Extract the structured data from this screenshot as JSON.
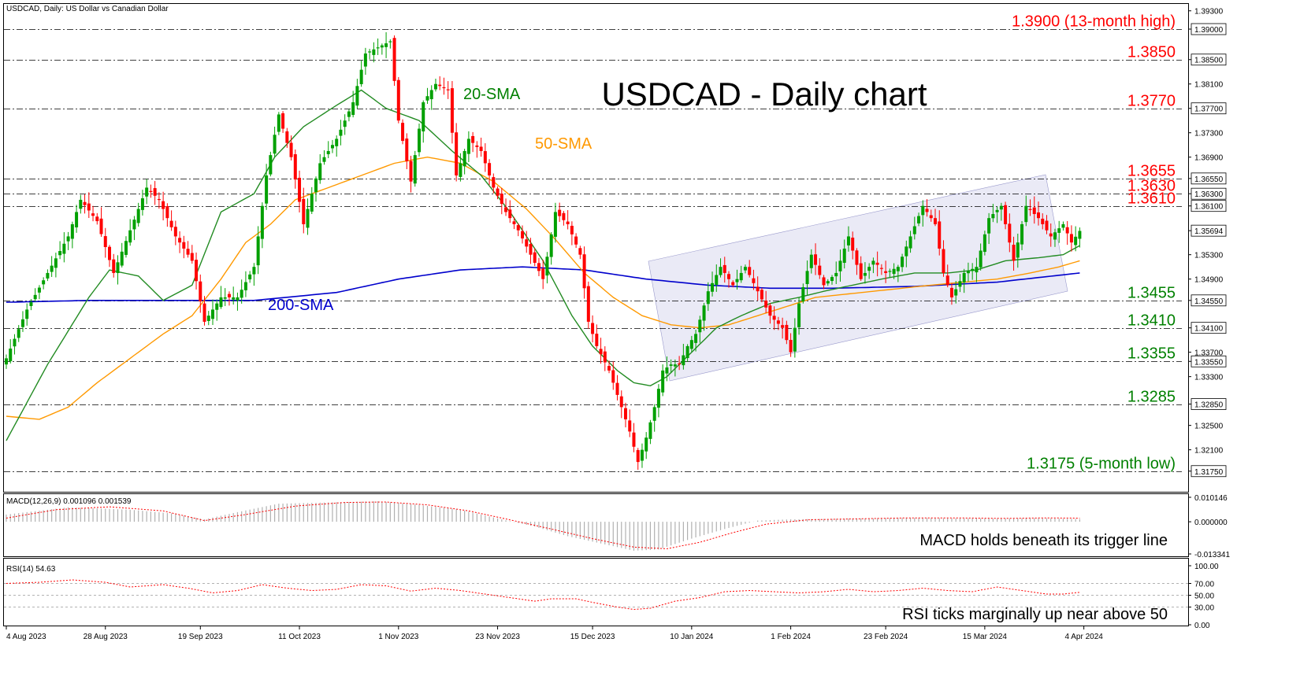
{
  "header": {
    "symbol_text": "USDCAD, Daily:  US Dollar vs Canadian Dollar",
    "title": "USDCAD - Daily chart"
  },
  "chart_data": [
    {
      "type": "candlestick",
      "title": "USDCAD - Daily chart",
      "symbol": "USDCAD, Daily:  US Dollar vs Canadian Dollar",
      "ylim": [
        1.3145,
        1.394
      ],
      "y_ticks": [
        "1.39300",
        "1.39000",
        "1.38500",
        "1.38100",
        "1.37700",
        "1.37300",
        "1.36900",
        "1.36550",
        "1.36300",
        "1.36100",
        "1.35694",
        "1.35300",
        "1.34900",
        "1.34550",
        "1.34100",
        "1.33700",
        "1.33550",
        "1.33300",
        "1.32850",
        "1.32500",
        "1.32100",
        "1.31750"
      ],
      "boxed_ticks": [
        "1.39000",
        "1.38500",
        "1.37700",
        "1.36550",
        "1.36300",
        "1.36100",
        "1.35694",
        "1.34550",
        "1.34100",
        "1.33550",
        "1.32850",
        "1.31750"
      ],
      "x_tick_labels": [
        "4 Aug 2023",
        "28 Aug 2023",
        "19 Sep 2023",
        "11 Oct 2023",
        "1 Nov 2023",
        "23 Nov 2023",
        "15 Dec 2023",
        "10 Jan 2024",
        "1 Feb 2024",
        "23 Feb 2024",
        "15 Mar 2024",
        "4 Apr 2024"
      ],
      "levels": [
        {
          "value": 1.39,
          "label": "1.3900 (13-month high)",
          "color": "#ff0000"
        },
        {
          "value": 1.385,
          "label": "1.3850",
          "color": "#ff0000"
        },
        {
          "value": 1.377,
          "label": "1.3770",
          "color": "#ff0000"
        },
        {
          "value": 1.3655,
          "label": "1.3655",
          "color": "#ff0000"
        },
        {
          "value": 1.363,
          "label": "1.3630",
          "color": "#ff0000"
        },
        {
          "value": 1.361,
          "label": "1.3610",
          "color": "#ff0000"
        },
        {
          "value": 1.3455,
          "label": "1.3455",
          "color": "#008000"
        },
        {
          "value": 1.341,
          "label": "1.3410",
          "color": "#008000"
        },
        {
          "value": 1.3355,
          "label": "1.3355",
          "color": "#008000"
        },
        {
          "value": 1.3285,
          "label": "1.3285",
          "color": "#008000"
        },
        {
          "value": 1.3175,
          "label": "1.3175 (5-month low)",
          "color": "#008000"
        }
      ],
      "close_anchors": [
        [
          0,
          1.336
        ],
        [
          5,
          1.344
        ],
        [
          10,
          1.35
        ],
        [
          15,
          1.356
        ],
        [
          18,
          1.362
        ],
        [
          22,
          1.3585
        ],
        [
          26,
          1.35
        ],
        [
          30,
          1.357
        ],
        [
          34,
          1.364
        ],
        [
          37,
          1.362
        ],
        [
          41,
          1.356
        ],
        [
          45,
          1.352
        ],
        [
          48,
          1.342
        ],
        [
          52,
          1.346
        ],
        [
          56,
          1.346
        ],
        [
          60,
          1.351
        ],
        [
          63,
          1.366
        ],
        [
          66,
          1.376
        ],
        [
          69,
          1.369
        ],
        [
          72,
          1.358
        ],
        [
          76,
          1.368
        ],
        [
          80,
          1.372
        ],
        [
          84,
          1.378
        ],
        [
          87,
          1.386
        ],
        [
          90,
          1.387
        ],
        [
          93,
          1.388
        ],
        [
          95,
          1.375
        ],
        [
          98,
          1.365
        ],
        [
          101,
          1.378
        ],
        [
          104,
          1.381
        ],
        [
          107,
          1.38
        ],
        [
          109,
          1.366
        ],
        [
          112,
          1.372
        ],
        [
          115,
          1.37
        ],
        [
          118,
          1.364
        ],
        [
          121,
          1.36
        ],
        [
          124,
          1.357
        ],
        [
          127,
          1.353
        ],
        [
          130,
          1.349
        ],
        [
          133,
          1.36
        ],
        [
          136,
          1.358
        ],
        [
          139,
          1.353
        ],
        [
          141,
          1.342
        ],
        [
          143,
          1.338
        ],
        [
          146,
          1.334
        ],
        [
          149,
          1.328
        ],
        [
          151,
          1.324
        ],
        [
          153,
          1.319
        ],
        [
          155,
          1.323
        ],
        [
          157,
          1.328
        ],
        [
          159,
          1.334
        ],
        [
          161,
          1.335
        ],
        [
          163,
          1.335
        ],
        [
          165,
          1.338
        ],
        [
          167,
          1.34
        ],
        [
          170,
          1.347
        ],
        [
          173,
          1.351
        ],
        [
          176,
          1.348
        ],
        [
          179,
          1.351
        ],
        [
          182,
          1.347
        ],
        [
          185,
          1.343
        ],
        [
          188,
          1.341
        ],
        [
          190,
          1.337
        ],
        [
          192,
          1.345
        ],
        [
          195,
          1.353
        ],
        [
          198,
          1.348
        ],
        [
          201,
          1.35
        ],
        [
          204,
          1.356
        ],
        [
          207,
          1.349
        ],
        [
          210,
          1.352
        ],
        [
          213,
          1.35
        ],
        [
          216,
          1.351
        ],
        [
          219,
          1.356
        ],
        [
          222,
          1.361
        ],
        [
          225,
          1.358
        ],
        [
          227,
          1.35
        ],
        [
          229,
          1.346
        ],
        [
          232,
          1.35
        ],
        [
          235,
          1.351
        ],
        [
          238,
          1.359
        ],
        [
          241,
          1.361
        ],
        [
          244,
          1.352
        ],
        [
          247,
          1.361
        ],
        [
          250,
          1.359
        ],
        [
          253,
          1.356
        ],
        [
          256,
          1.358
        ],
        [
          258,
          1.355
        ],
        [
          260,
          1.3569
        ]
      ],
      "sma20_anchors": [
        [
          0,
          1.3225
        ],
        [
          10,
          1.335
        ],
        [
          20,
          1.346
        ],
        [
          25,
          1.3505
        ],
        [
          32,
          1.3495
        ],
        [
          38,
          1.3455
        ],
        [
          45,
          1.348
        ],
        [
          52,
          1.36
        ],
        [
          60,
          1.363
        ],
        [
          65,
          1.369
        ],
        [
          72,
          1.374
        ],
        [
          80,
          1.3775
        ],
        [
          86,
          1.38
        ],
        [
          92,
          1.377
        ],
        [
          100,
          1.375
        ],
        [
          108,
          1.37
        ],
        [
          115,
          1.366
        ],
        [
          122,
          1.36
        ],
        [
          130,
          1.352
        ],
        [
          137,
          1.343
        ],
        [
          142,
          1.338
        ],
        [
          148,
          1.334
        ],
        [
          152,
          1.332
        ],
        [
          156,
          1.3315
        ],
        [
          160,
          1.333
        ],
        [
          166,
          1.337
        ],
        [
          172,
          1.341
        ],
        [
          178,
          1.343
        ],
        [
          185,
          1.345
        ],
        [
          192,
          1.346
        ],
        [
          198,
          1.347
        ],
        [
          205,
          1.348
        ],
        [
          212,
          1.349
        ],
        [
          220,
          1.35
        ],
        [
          228,
          1.35
        ],
        [
          235,
          1.3505
        ],
        [
          242,
          1.352
        ],
        [
          250,
          1.3525
        ],
        [
          256,
          1.353
        ],
        [
          260,
          1.3545
        ]
      ],
      "sma50_anchors": [
        [
          0,
          1.3265
        ],
        [
          8,
          1.326
        ],
        [
          15,
          1.328
        ],
        [
          22,
          1.332
        ],
        [
          30,
          1.336
        ],
        [
          38,
          1.34
        ],
        [
          45,
          1.343
        ],
        [
          52,
          1.349
        ],
        [
          58,
          1.355
        ],
        [
          64,
          1.358
        ],
        [
          70,
          1.362
        ],
        [
          78,
          1.364
        ],
        [
          86,
          1.366
        ],
        [
          94,
          1.368
        ],
        [
          102,
          1.369
        ],
        [
          110,
          1.368
        ],
        [
          118,
          1.365
        ],
        [
          126,
          1.3605
        ],
        [
          133,
          1.3555
        ],
        [
          140,
          1.35
        ],
        [
          147,
          1.346
        ],
        [
          154,
          1.343
        ],
        [
          161,
          1.3415
        ],
        [
          168,
          1.341
        ],
        [
          175,
          1.3415
        ],
        [
          182,
          1.343
        ],
        [
          189,
          1.3445
        ],
        [
          196,
          1.346
        ],
        [
          203,
          1.3465
        ],
        [
          210,
          1.347
        ],
        [
          217,
          1.3475
        ],
        [
          224,
          1.348
        ],
        [
          232,
          1.3485
        ],
        [
          240,
          1.349
        ],
        [
          248,
          1.35
        ],
        [
          255,
          1.351
        ],
        [
          260,
          1.352
        ]
      ],
      "sma200_anchors": [
        [
          0,
          1.3452
        ],
        [
          20,
          1.3455
        ],
        [
          40,
          1.3455
        ],
        [
          60,
          1.3455
        ],
        [
          80,
          1.3468
        ],
        [
          95,
          1.349
        ],
        [
          110,
          1.3505
        ],
        [
          125,
          1.351
        ],
        [
          140,
          1.3505
        ],
        [
          155,
          1.349
        ],
        [
          170,
          1.348
        ],
        [
          185,
          1.3475
        ],
        [
          200,
          1.3475
        ],
        [
          220,
          1.3478
        ],
        [
          240,
          1.3485
        ],
        [
          260,
          1.35
        ]
      ],
      "annotations": [
        {
          "text": "20-SMA",
          "color": "#008000"
        },
        {
          "text": "50-SMA",
          "color": "#ff9900"
        },
        {
          "text": "200-SMA",
          "color": "#0000cc"
        }
      ],
      "colors": {
        "up": "#00a000",
        "down": "#ff0000",
        "sma20": "#228b22",
        "sma50": "#ff9900",
        "sma200": "#0000cc",
        "channel": "#e6e6f5",
        "grid": "#000000"
      }
    },
    {
      "type": "histogram",
      "title": "MACD(12,26,9) 0.001096 0.001539",
      "y_ticks": [
        "0.010146",
        "0.000000",
        "-0.013341"
      ],
      "ylim": [
        -0.013341,
        0.010146
      ],
      "note": "MACD holds beneath its trigger line",
      "hist_anchors": [
        [
          0,
          0.003
        ],
        [
          15,
          0.006
        ],
        [
          30,
          0.005
        ],
        [
          40,
          0.0035
        ],
        [
          48,
          0.001
        ],
        [
          56,
          0.004
        ],
        [
          66,
          0.0075
        ],
        [
          78,
          0.008
        ],
        [
          90,
          0.0085
        ],
        [
          100,
          0.007
        ],
        [
          110,
          0.005
        ],
        [
          120,
          0.001
        ],
        [
          128,
          -0.002
        ],
        [
          136,
          -0.006
        ],
        [
          144,
          -0.009
        ],
        [
          152,
          -0.012
        ],
        [
          158,
          -0.0115
        ],
        [
          166,
          -0.007
        ],
        [
          174,
          -0.003
        ],
        [
          182,
          0.0005
        ],
        [
          190,
          0.001
        ],
        [
          200,
          0.0012
        ],
        [
          210,
          0.0014
        ],
        [
          220,
          0.0016
        ],
        [
          230,
          0.0014
        ],
        [
          240,
          0.0013
        ],
        [
          250,
          0.0015
        ],
        [
          260,
          0.0011
        ]
      ],
      "signal_anchors": [
        [
          0,
          0.0015
        ],
        [
          12,
          0.005
        ],
        [
          25,
          0.0062
        ],
        [
          38,
          0.0045
        ],
        [
          48,
          0.0005
        ],
        [
          58,
          0.003
        ],
        [
          70,
          0.0065
        ],
        [
          82,
          0.008
        ],
        [
          92,
          0.0082
        ],
        [
          102,
          0.007
        ],
        [
          112,
          0.0045
        ],
        [
          122,
          0.0008
        ],
        [
          132,
          -0.003
        ],
        [
          142,
          -0.007
        ],
        [
          152,
          -0.0105
        ],
        [
          160,
          -0.0112
        ],
        [
          168,
          -0.0085
        ],
        [
          176,
          -0.0045
        ],
        [
          184,
          -0.001
        ],
        [
          194,
          0.0008
        ],
        [
          206,
          0.0012
        ],
        [
          218,
          0.0016
        ],
        [
          230,
          0.0016
        ],
        [
          242,
          0.0014
        ],
        [
          252,
          0.0016
        ],
        [
          260,
          0.0015
        ]
      ],
      "colors": {
        "hist": "#b0b0b0",
        "signal": "#ff0000"
      }
    },
    {
      "type": "line",
      "title": "RSI(14) 54.63",
      "y_ticks": [
        "100.00",
        "70.00",
        "50.00",
        "30.00",
        "0.00"
      ],
      "levels": [
        70,
        50,
        30
      ],
      "ylim": [
        0,
        100
      ],
      "note": "RSI ticks marginally up near above 50",
      "rsi_anchors": [
        [
          0,
          70
        ],
        [
          8,
          72
        ],
        [
          16,
          76
        ],
        [
          24,
          72
        ],
        [
          30,
          64
        ],
        [
          38,
          68
        ],
        [
          44,
          62
        ],
        [
          50,
          54
        ],
        [
          56,
          58
        ],
        [
          62,
          68
        ],
        [
          68,
          62
        ],
        [
          74,
          58
        ],
        [
          80,
          60
        ],
        [
          86,
          68
        ],
        [
          92,
          66
        ],
        [
          98,
          57
        ],
        [
          104,
          62
        ],
        [
          110,
          58
        ],
        [
          116,
          52
        ],
        [
          122,
          46
        ],
        [
          128,
          40
        ],
        [
          132,
          44
        ],
        [
          138,
          44
        ],
        [
          142,
          38
        ],
        [
          148,
          30
        ],
        [
          152,
          26
        ],
        [
          156,
          28
        ],
        [
          162,
          40
        ],
        [
          168,
          46
        ],
        [
          174,
          56
        ],
        [
          180,
          58
        ],
        [
          186,
          56
        ],
        [
          192,
          54
        ],
        [
          198,
          56
        ],
        [
          204,
          60
        ],
        [
          210,
          56
        ],
        [
          216,
          58
        ],
        [
          222,
          62
        ],
        [
          228,
          58
        ],
        [
          234,
          56
        ],
        [
          240,
          64
        ],
        [
          246,
          58
        ],
        [
          252,
          52
        ],
        [
          256,
          52
        ],
        [
          260,
          55
        ]
      ],
      "colors": {
        "line": "#ff0000",
        "levels": "#999999"
      }
    }
  ]
}
